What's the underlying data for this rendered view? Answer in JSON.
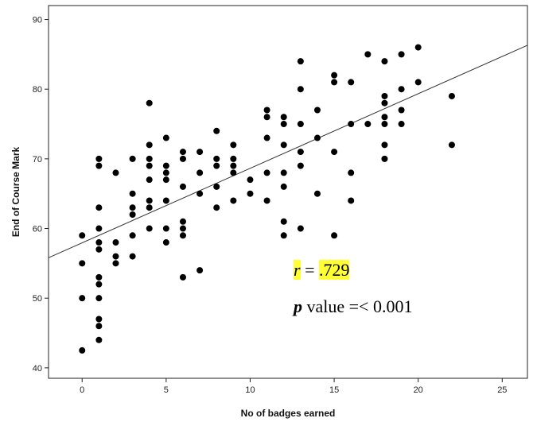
{
  "chart_data": {
    "type": "scatter",
    "xlabel": "No of badges earned",
    "ylabel": "End of Course Mark",
    "xlim": [
      -2,
      26.5
    ],
    "ylim": [
      38.5,
      92
    ],
    "xticks": [
      0,
      5,
      10,
      15,
      20,
      25
    ],
    "yticks": [
      40,
      50,
      60,
      70,
      80,
      90
    ],
    "grid": false,
    "points": [
      [
        0,
        59
      ],
      [
        0,
        55
      ],
      [
        0,
        50
      ],
      [
        0,
        42.5
      ],
      [
        1,
        70
      ],
      [
        1,
        69
      ],
      [
        1,
        63
      ],
      [
        1,
        60
      ],
      [
        1,
        58
      ],
      [
        1,
        57
      ],
      [
        1,
        53
      ],
      [
        1,
        52
      ],
      [
        1,
        50
      ],
      [
        1,
        47
      ],
      [
        1,
        46
      ],
      [
        1,
        44
      ],
      [
        2,
        68
      ],
      [
        2,
        58
      ],
      [
        2,
        56
      ],
      [
        2,
        55
      ],
      [
        3,
        70
      ],
      [
        3,
        65
      ],
      [
        3,
        63
      ],
      [
        3,
        62
      ],
      [
        3,
        59
      ],
      [
        3,
        56
      ],
      [
        4,
        78
      ],
      [
        4,
        72
      ],
      [
        4,
        70
      ],
      [
        4,
        69
      ],
      [
        4,
        67
      ],
      [
        4,
        64
      ],
      [
        4,
        63
      ],
      [
        4,
        60
      ],
      [
        5,
        73
      ],
      [
        5,
        69
      ],
      [
        5,
        68
      ],
      [
        5,
        67
      ],
      [
        5,
        64
      ],
      [
        5,
        60
      ],
      [
        5,
        58
      ],
      [
        6,
        71
      ],
      [
        6,
        70
      ],
      [
        6,
        66
      ],
      [
        6,
        61
      ],
      [
        6,
        60
      ],
      [
        6,
        59
      ],
      [
        6,
        53
      ],
      [
        7,
        71
      ],
      [
        7,
        68
      ],
      [
        7,
        65
      ],
      [
        7,
        54
      ],
      [
        8,
        74
      ],
      [
        8,
        70
      ],
      [
        8,
        69
      ],
      [
        8,
        66
      ],
      [
        8,
        63
      ],
      [
        9,
        72
      ],
      [
        9,
        70
      ],
      [
        9,
        69
      ],
      [
        9,
        68
      ],
      [
        9,
        64
      ],
      [
        10,
        67
      ],
      [
        10,
        65
      ],
      [
        11,
        77
      ],
      [
        11,
        76
      ],
      [
        11,
        73
      ],
      [
        11,
        68
      ],
      [
        11,
        64
      ],
      [
        12,
        76
      ],
      [
        12,
        75
      ],
      [
        12,
        72
      ],
      [
        12,
        68
      ],
      [
        12,
        66
      ],
      [
        12,
        61
      ],
      [
        12,
        59
      ],
      [
        13,
        84
      ],
      [
        13,
        80
      ],
      [
        13,
        75
      ],
      [
        13,
        71
      ],
      [
        13,
        69
      ],
      [
        13,
        60
      ],
      [
        14,
        77
      ],
      [
        14,
        73
      ],
      [
        14,
        65
      ],
      [
        15,
        82
      ],
      [
        15,
        81
      ],
      [
        15,
        71
      ],
      [
        15,
        59
      ],
      [
        16,
        81
      ],
      [
        16,
        75
      ],
      [
        16,
        68
      ],
      [
        16,
        64
      ],
      [
        17,
        85
      ],
      [
        17,
        75
      ],
      [
        18,
        84
      ],
      [
        18,
        79
      ],
      [
        18,
        78
      ],
      [
        18,
        76
      ],
      [
        18,
        75
      ],
      [
        18,
        72
      ],
      [
        18,
        70
      ],
      [
        19,
        85
      ],
      [
        19,
        80
      ],
      [
        19,
        77
      ],
      [
        19,
        75
      ],
      [
        20,
        86
      ],
      [
        20,
        81
      ],
      [
        22,
        79
      ],
      [
        22,
        72
      ]
    ],
    "fit_line": {
      "x": [
        -2,
        26.5
      ],
      "y": [
        55.8,
        86.3
      ]
    }
  },
  "annotations": {
    "r_symbol": "r",
    "r_equals": " = ",
    "r_value": ".729",
    "p_symbol": "p",
    "p_text": " value =< 0.001"
  }
}
